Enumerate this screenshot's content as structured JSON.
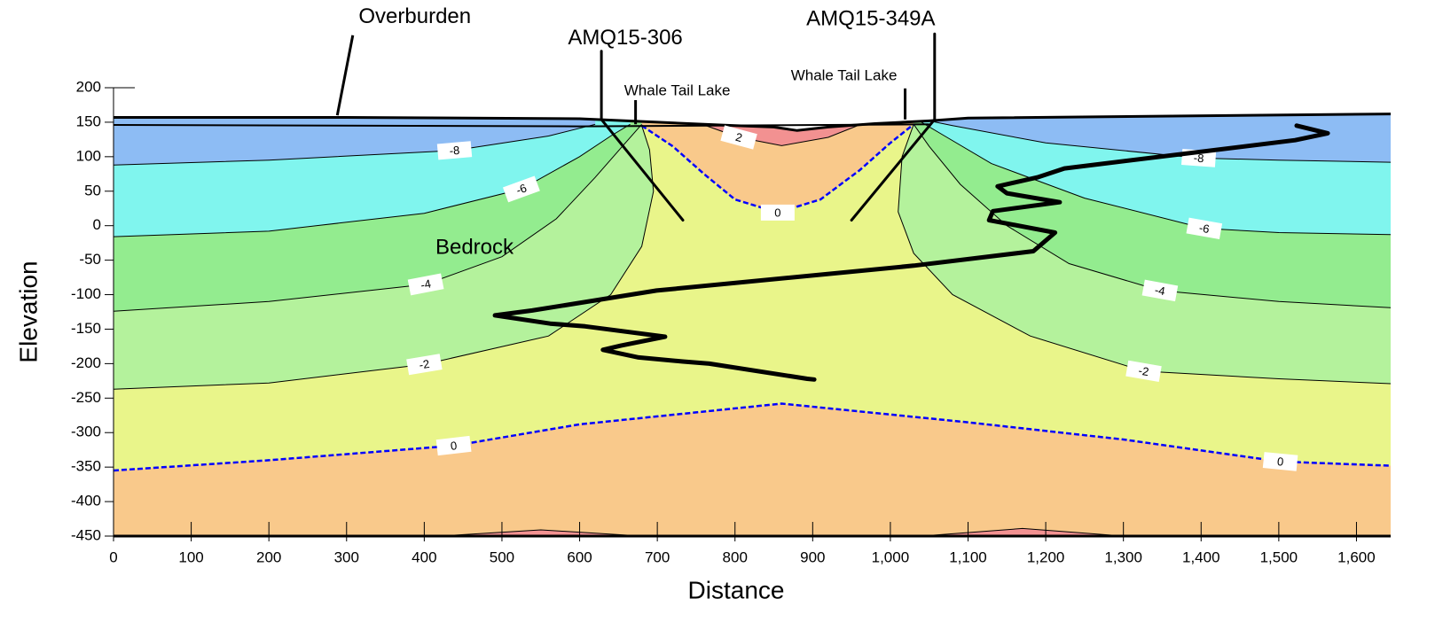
{
  "chart_data": {
    "type": "contour",
    "xlabel": "Distance",
    "ylabel": "Elevation",
    "xlim": [
      0,
      1644
    ],
    "ylim": [
      -450,
      200
    ],
    "xticks": [
      0,
      100,
      200,
      300,
      400,
      500,
      600,
      700,
      800,
      900,
      {
        "value": 1000,
        "label": "1,000"
      },
      {
        "value": 1100,
        "label": "1,100"
      },
      {
        "value": 1200,
        "label": "1,200"
      },
      {
        "value": 1300,
        "label": "1,300"
      },
      {
        "value": 1400,
        "label": "1,400"
      },
      {
        "value": 1500,
        "label": "1,500"
      },
      {
        "value": 1600,
        "label": "1,600"
      }
    ],
    "yticks": [
      -450,
      -400,
      -350,
      -300,
      -250,
      -200,
      -150,
      -100,
      -50,
      0,
      50,
      100,
      150,
      200
    ],
    "background_color": "#f9c98b",
    "contours": [
      {
        "label": "0",
        "color": "#e9f58a",
        "line_color": "#0000ff",
        "dashed": true,
        "lines": [
          {
            "x": [
              0,
              200,
              438,
              600,
              860,
              1100,
              1300,
              1502,
              1644
            ],
            "y": [
              -355,
              -340,
              -319,
              -288,
              -258,
              -285,
              -310,
              -342,
              -348
            ]
          }
        ]
      },
      {
        "label": "-2",
        "color": "#b4f29c",
        "line_color": "#000000",
        "dashed": false,
        "lines": [
          {
            "x": [
              0,
              200,
              400,
              560,
              640,
              680,
              695,
              690,
              680
            ],
            "y": [
              -237,
              -228,
              -201,
              -160,
              -100,
              -30,
              50,
              110,
              145
            ]
          },
          {
            "x": [
              1644,
              1500,
              1326,
              1180,
              1080,
              1030,
              1010,
              1015,
              1030
            ],
            "y": [
              -229,
              -222,
              -211,
              -160,
              -100,
              -40,
              20,
              100,
              147
            ]
          }
        ]
      },
      {
        "label": "-4",
        "color": "#93ec8f",
        "line_color": "#000000",
        "dashed": false,
        "lines": [
          {
            "x": [
              0,
              200,
              402,
              500,
              570,
              620,
              655,
              680
            ],
            "y": [
              -124,
              -110,
              -85,
              -45,
              10,
              70,
              115,
              147
            ]
          },
          {
            "x": [
              1644,
              1500,
              1347,
              1230,
              1150,
              1090,
              1050,
              1030
            ],
            "y": [
              -119,
              -110,
              -94,
              -55,
              0,
              60,
              115,
              147
            ]
          }
        ]
      },
      {
        "label": "-6",
        "color": "#80f5ee",
        "line_color": "#000000",
        "dashed": false,
        "lines": [
          {
            "x": [
              0,
              200,
              400,
              525,
              600,
              640,
              665
            ],
            "y": [
              -16,
              -8,
              18,
              53,
              100,
              130,
              147
            ]
          },
          {
            "x": [
              1644,
              1500,
              1404,
              1250,
              1130,
              1070,
              1040
            ],
            "y": [
              -13,
              -10,
              -4,
              40,
              90,
              130,
              150
            ]
          }
        ]
      },
      {
        "label": "-8",
        "color": "#8dbcf4",
        "line_color": "#000000",
        "dashed": false,
        "lines": [
          {
            "x": [
              0,
              200,
              439,
              560,
              620
            ],
            "y": [
              88,
              95,
              109,
              130,
              147
            ]
          },
          {
            "x": [
              1644,
              1500,
              1397,
              1200,
              1080,
              1050
            ],
            "y": [
              92,
              95,
              98,
              120,
              145,
              152
            ]
          }
        ]
      },
      {
        "label": "0",
        "color": "#f9c98b",
        "line_color": "#0000ff",
        "dashed": true,
        "lines": [
          {
            "x": [
              680,
              720,
              760,
              800,
              855,
              910,
              960,
              1000,
              1030
            ],
            "y": [
              145,
              115,
              75,
              38,
              19,
              38,
              80,
              120,
              147
            ]
          }
        ]
      },
      {
        "label": "2",
        "color": "#f29191",
        "line_color": "#000000",
        "dashed": false,
        "lines": [
          {
            "x": [
              760,
              805,
              860,
              920,
              960
            ],
            "y": [
              146,
              128,
              116,
              128,
              146
            ]
          },
          {
            "x": [
              420,
              550,
              680
            ],
            "y": [
              -450,
              -441,
              -450
            ]
          },
          {
            "x": [
              1040,
              1170,
              1300
            ],
            "y": [
              -450,
              -439,
              -450
            ]
          }
        ]
      }
    ],
    "surface": {
      "x": [
        0,
        300,
        600,
        700,
        800,
        850,
        880,
        920,
        980,
        1050,
        1100,
        1644
      ],
      "y": [
        157,
        157,
        155,
        150,
        145,
        143,
        138,
        143,
        148,
        152,
        156,
        162
      ]
    },
    "overburden_base": {
      "x": [
        0,
        600,
        1050
      ],
      "y": [
        146,
        144,
        147
      ]
    },
    "traces": [
      {
        "name": "AMQ15-306",
        "x": [
          628,
          628,
          733
        ],
        "y": [
          253,
          154,
          8
        ]
      },
      {
        "name": "AMQ15-349A",
        "x": [
          1057,
          1057,
          950
        ],
        "y": [
          278,
          154,
          8
        ]
      },
      {
        "x": [
          1523,
          1563,
          1521,
          1224,
          1189,
          1138,
          1150,
          1218,
          1132,
          1127,
          1212,
          1184,
          1030,
          699,
          539,
          491,
          562,
          607,
          710,
          653,
          630,
          676,
          733,
          767,
          893,
          902
        ],
        "y": [
          145,
          134,
          124,
          83,
          70,
          57,
          47,
          34,
          21,
          8,
          -10,
          -37,
          -58,
          -94,
          -123,
          -130,
          -142,
          -146,
          -161,
          -174,
          -180,
          -191,
          -197,
          -200,
          -222,
          -223
        ]
      }
    ],
    "lakes": [
      {
        "label": "Whale Tail Lake",
        "x": 672,
        "y": [
          182,
          147
        ]
      },
      {
        "label": "Whale Tail Lake",
        "x": 1019,
        "y": [
          199,
          154
        ]
      }
    ],
    "overburden": {
      "label": "Overburden",
      "x": [
        308,
        288
      ],
      "y": [
        276,
        160
      ]
    },
    "bedrock": "Bedrock"
  }
}
